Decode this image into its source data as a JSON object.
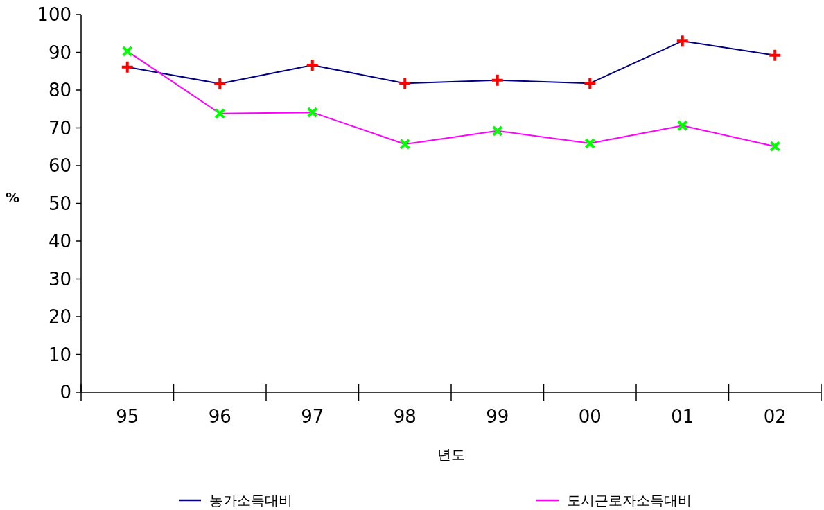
{
  "chart_data": {
    "type": "line",
    "xlabel": "년도",
    "ylabel": "%",
    "categories": [
      "95",
      "96",
      "97",
      "98",
      "99",
      "00",
      "01",
      "02"
    ],
    "ylim": [
      0,
      100
    ],
    "yticks": [
      0,
      10,
      20,
      30,
      40,
      50,
      60,
      70,
      80,
      90,
      100
    ],
    "grid": false,
    "legend": "bottom",
    "series": [
      {
        "name": "농가소득대비",
        "color": "#000080",
        "marker": "plus",
        "colors": [
          "#ff0000",
          "#ff0000",
          "#ff0000",
          "#ff0000",
          "#ff0000",
          "#ff0000",
          "#ff0000",
          "#ff0000"
        ],
        "values": [
          86.1,
          81.7,
          86.6,
          81.8,
          82.6,
          81.8,
          93.0,
          89.2
        ]
      },
      {
        "name": "도시근로자소득대비",
        "color": "#ff00ff",
        "marker": "cross",
        "colors": [
          "#00ff00",
          "#00ff00",
          "#00ff00",
          "#00ff00",
          "#00ff00",
          "#00ff00",
          "#00ff00",
          "#00ff00"
        ],
        "values": [
          90.3,
          73.8,
          74.1,
          65.7,
          69.2,
          65.9,
          70.6,
          65.1
        ]
      }
    ]
  }
}
